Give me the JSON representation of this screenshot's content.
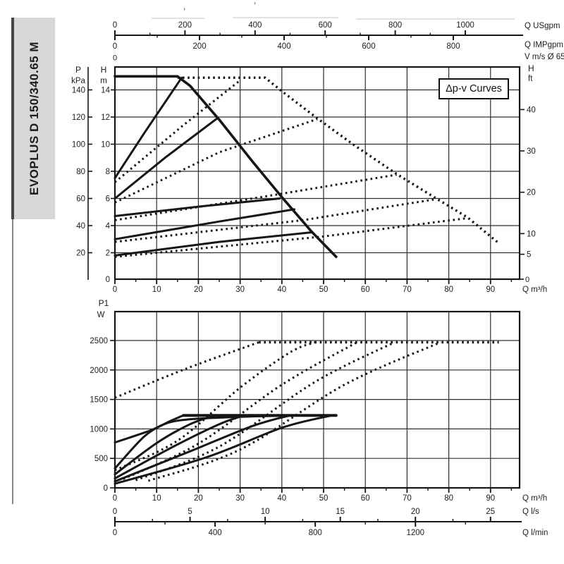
{
  "sidebar": {
    "model": "EVOPLUS D 150/340.65 M"
  },
  "scan_artifacts": {
    "glyph1": "‚",
    "glyph2": "’"
  },
  "top_chart": {
    "annotation": "Δp-v Curves",
    "left_axis": {
      "p_label": "P",
      "p_unit": "kPa",
      "h_label": "H",
      "h_unit": "m",
      "kpa_ticks": [
        140,
        120,
        100,
        80,
        60,
        40,
        20
      ],
      "h_ticks": [
        14,
        12,
        10,
        8,
        6,
        4,
        2
      ],
      "h_zero": "0"
    },
    "right_axis": {
      "h_label": "H",
      "h_unit": "ft",
      "ticks": [
        40,
        30,
        20,
        10,
        5
      ],
      "zero_label": "0"
    },
    "top_axes": {
      "usgpm": {
        "label": "Q USgpm",
        "ticks": [
          0,
          200,
          400,
          600,
          800,
          1000
        ]
      },
      "impgpm": {
        "label": "Q IMPgpm",
        "ticks": [
          0,
          200,
          400,
          600,
          800
        ]
      },
      "v": {
        "label": "V m/s Ø 65",
        "zero_label": "0"
      }
    },
    "bottom_axis": {
      "label": "Q m³/h",
      "ticks": [
        0,
        10,
        20,
        30,
        40,
        50,
        60,
        70,
        80,
        90
      ]
    }
  },
  "bottom_chart": {
    "left_axis": {
      "label": "P1",
      "unit": "W",
      "ticks": [
        2500,
        2000,
        1500,
        1000,
        500,
        0
      ]
    },
    "bottom_axes": {
      "m3h": {
        "label": "Q m³/h",
        "ticks": [
          0,
          10,
          20,
          30,
          40,
          50,
          60,
          70,
          80,
          90
        ]
      },
      "ls": {
        "label": "Q l/s",
        "ticks": [
          0,
          5,
          10,
          15,
          20,
          25
        ]
      },
      "lmin": {
        "label": "Q l/min",
        "ticks": [
          0,
          400,
          800,
          1200
        ]
      }
    }
  },
  "chart_data": [
    {
      "type": "line",
      "title": "Δp-v Curves",
      "xlabel": "Q m³/h",
      "ylabel": "H m",
      "ylabel_secondary": [
        "P kPa",
        "H ft"
      ],
      "xlim": [
        0,
        97
      ],
      "ylim": [
        0,
        15.7
      ],
      "grid": true,
      "series": [
        {
          "name": "max-speed-single",
          "style": "solid",
          "width": 3.6,
          "points": [
            [
              0,
              15
            ],
            [
              15,
              15
            ],
            [
              18,
              14.3
            ],
            [
              25,
              11.8
            ],
            [
              33,
              8.7
            ],
            [
              40,
              6.1
            ],
            [
              47,
              3.6
            ],
            [
              53,
              1.7
            ]
          ]
        },
        {
          "name": "max-speed-parallel",
          "style": "dotted",
          "width": 3.4,
          "points": [
            [
              15,
              14.9
            ],
            [
              36,
              14.9
            ],
            [
              40,
              13.9
            ],
            [
              48.5,
              11.9
            ],
            [
              57,
              10
            ],
            [
              67.5,
              7.8
            ],
            [
              77,
              6
            ],
            [
              84.5,
              4.6
            ],
            [
              92,
              2.7
            ]
          ]
        },
        {
          "name": "dpv-1-single",
          "style": "solid",
          "points": [
            [
              0,
              7.5
            ],
            [
              7,
              10.8
            ],
            [
              16,
              14.9
            ]
          ]
        },
        {
          "name": "dpv-1-parallel",
          "style": "dotted",
          "points": [
            [
              0,
              7.2
            ],
            [
              16,
              11.3
            ],
            [
              30,
              14.7
            ]
          ]
        },
        {
          "name": "dpv-2-single",
          "style": "solid",
          "points": [
            [
              0,
              6
            ],
            [
              12,
              9
            ],
            [
              24.5,
              11.9
            ]
          ]
        },
        {
          "name": "dpv-2-parallel",
          "style": "dotted",
          "points": [
            [
              0,
              5.7
            ],
            [
              25,
              9.4
            ],
            [
              48.5,
              11.85
            ]
          ]
        },
        {
          "name": "dpv-3-single",
          "style": "solid",
          "points": [
            [
              0,
              4.7
            ],
            [
              20,
              5.4
            ],
            [
              39.5,
              6
            ]
          ]
        },
        {
          "name": "dpv-3-parallel",
          "style": "dotted",
          "points": [
            [
              0,
              4.4
            ],
            [
              35,
              6.1
            ],
            [
              67.5,
              7.75
            ]
          ]
        },
        {
          "name": "dpv-4-single",
          "style": "solid",
          "points": [
            [
              0,
              3
            ],
            [
              25,
              4.3
            ],
            [
              43,
              5.2
            ]
          ]
        },
        {
          "name": "dpv-4-parallel",
          "style": "dotted",
          "points": [
            [
              0,
              2.8
            ],
            [
              45,
              4.4
            ],
            [
              77,
              5.95
            ]
          ]
        },
        {
          "name": "dpv-5-single",
          "style": "solid",
          "points": [
            [
              0,
              1.8
            ],
            [
              25,
              2.8
            ],
            [
              47,
              3.5
            ]
          ]
        },
        {
          "name": "dpv-5-parallel",
          "style": "dotted",
          "points": [
            [
              0,
              1.7
            ],
            [
              50,
              3.2
            ],
            [
              84.5,
              4.55
            ]
          ]
        }
      ]
    },
    {
      "type": "line",
      "xlabel": "Q m³/h",
      "ylabel": "P1 W",
      "xlim": [
        0,
        97
      ],
      "ylim": [
        0,
        2990
      ],
      "grid": true,
      "series": [
        {
          "name": "p1-cap-single",
          "style": "solid",
          "width": 4,
          "points": [
            [
              16.4,
              1230
            ],
            [
              53,
              1230
            ]
          ]
        },
        {
          "name": "p1-cap-parallel",
          "style": "dotted",
          "width": 3.4,
          "points": [
            [
              34.5,
              2470
            ],
            [
              92,
              2470
            ]
          ]
        },
        {
          "name": "p1-maxspeed-single",
          "style": "solid",
          "points": [
            [
              0,
              770
            ],
            [
              8,
              960
            ],
            [
              15,
              1140
            ],
            [
              30,
              1205
            ],
            [
              45,
              1228
            ]
          ]
        },
        {
          "name": "p1-maxspeed-parallel",
          "style": "dotted",
          "points": [
            [
              0,
              1530
            ],
            [
              17,
              2020
            ],
            [
              34.5,
              2470
            ]
          ]
        },
        {
          "name": "p1-dpv-1-single",
          "style": "solid",
          "points": [
            [
              0,
              330
            ],
            [
              7,
              870
            ],
            [
              12,
              1090
            ],
            [
              16.4,
              1230
            ]
          ]
        },
        {
          "name": "p1-dpv-2-single",
          "style": "solid",
          "points": [
            [
              0,
              230
            ],
            [
              10,
              760
            ],
            [
              18,
              1080
            ],
            [
              24,
              1230
            ]
          ]
        },
        {
          "name": "p1-dpv-3-single",
          "style": "solid",
          "points": [
            [
              0,
              160
            ],
            [
              14,
              700
            ],
            [
              25,
              1080
            ],
            [
              31,
              1230
            ]
          ]
        },
        {
          "name": "p1-dpv-4-single",
          "style": "solid",
          "points": [
            [
              0,
              110
            ],
            [
              18,
              620
            ],
            [
              33,
              1050
            ],
            [
              42,
              1230
            ]
          ]
        },
        {
          "name": "p1-dpv-5-single",
          "style": "solid",
          "points": [
            [
              0,
              70
            ],
            [
              22,
              520
            ],
            [
              40,
              1020
            ],
            [
              52,
              1230
            ]
          ]
        },
        {
          "name": "p1-dpv-1-parallel",
          "style": "dotted",
          "points": [
            [
              0,
              300
            ],
            [
              15,
              800
            ],
            [
              30,
              1700
            ],
            [
              42,
              2300
            ],
            [
              48,
              2470
            ]
          ]
        },
        {
          "name": "p1-dpv-2-parallel",
          "style": "dotted",
          "points": [
            [
              2,
              150
            ],
            [
              20,
              750
            ],
            [
              40,
              1750
            ],
            [
              58,
              2470
            ]
          ]
        },
        {
          "name": "p1-dpv-3-parallel",
          "style": "dotted",
          "points": [
            [
              5,
              130
            ],
            [
              25,
              700
            ],
            [
              48,
              1800
            ],
            [
              67,
              2470
            ]
          ]
        },
        {
          "name": "p1-dpv-4-parallel",
          "style": "dotted",
          "points": [
            [
              8,
              120
            ],
            [
              30,
              650
            ],
            [
              55,
              1750
            ],
            [
              78,
              2470
            ]
          ]
        }
      ]
    }
  ]
}
